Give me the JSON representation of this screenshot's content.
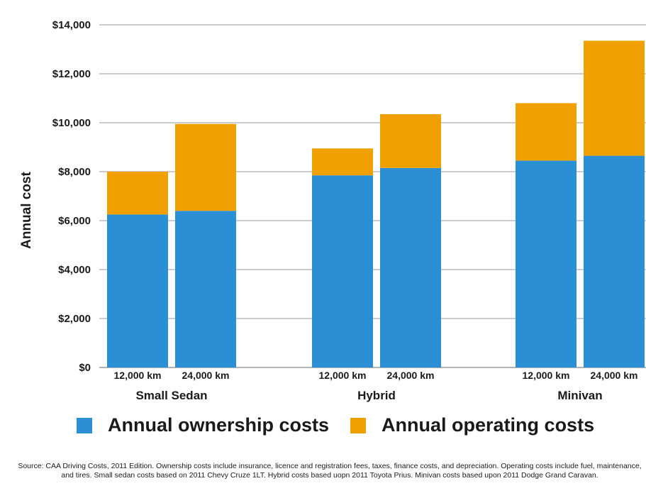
{
  "chart_data": {
    "type": "bar",
    "stacked": true,
    "ylabel": "Annual cost",
    "ylim": [
      0,
      14000
    ],
    "y_ticks": [
      "$0",
      "$2,000",
      "$4,000",
      "$6,000",
      "$8,000",
      "$10,000",
      "$12,000",
      "$14,000"
    ],
    "y_tick_values": [
      0,
      2000,
      4000,
      6000,
      8000,
      10000,
      12000,
      14000
    ],
    "grid": true,
    "legend_position": "bottom",
    "groups": [
      {
        "name": "Small Sedan",
        "bars": [
          "12,000 km",
          "24,000 km"
        ]
      },
      {
        "name": "Hybrid",
        "bars": [
          "12,000 km",
          "24,000 km"
        ]
      },
      {
        "name": "Minivan",
        "bars": [
          "12,000 km",
          "24,000 km"
        ]
      }
    ],
    "series": [
      {
        "name": "Annual ownership costs",
        "color": "#2b8fd6",
        "values": [
          6250,
          6400,
          7850,
          8150,
          8450,
          8650
        ]
      },
      {
        "name": "Annual operating costs",
        "color": "#f0a000",
        "values": [
          1750,
          3550,
          1100,
          2200,
          2350,
          4700
        ]
      }
    ]
  },
  "legend": {
    "ownership_label": "Annual ownership costs",
    "operating_label": "Annual operating costs",
    "ownership_color": "#2b8fd6",
    "operating_color": "#f0a000"
  },
  "source_note": "Source: CAA Driving Costs, 2011 Edition. Ownership costs include insurance, licence and registration fees, taxes, finance costs, and depreciation. Operating costs include fuel, maintenance, and tires. Small sedan costs based on 2011 Chevy Cruze 1LT. Hybrid costs based uopn 2011 Toyota Prius. Minivan costs based upon 2011 Dodge Grand Caravan."
}
